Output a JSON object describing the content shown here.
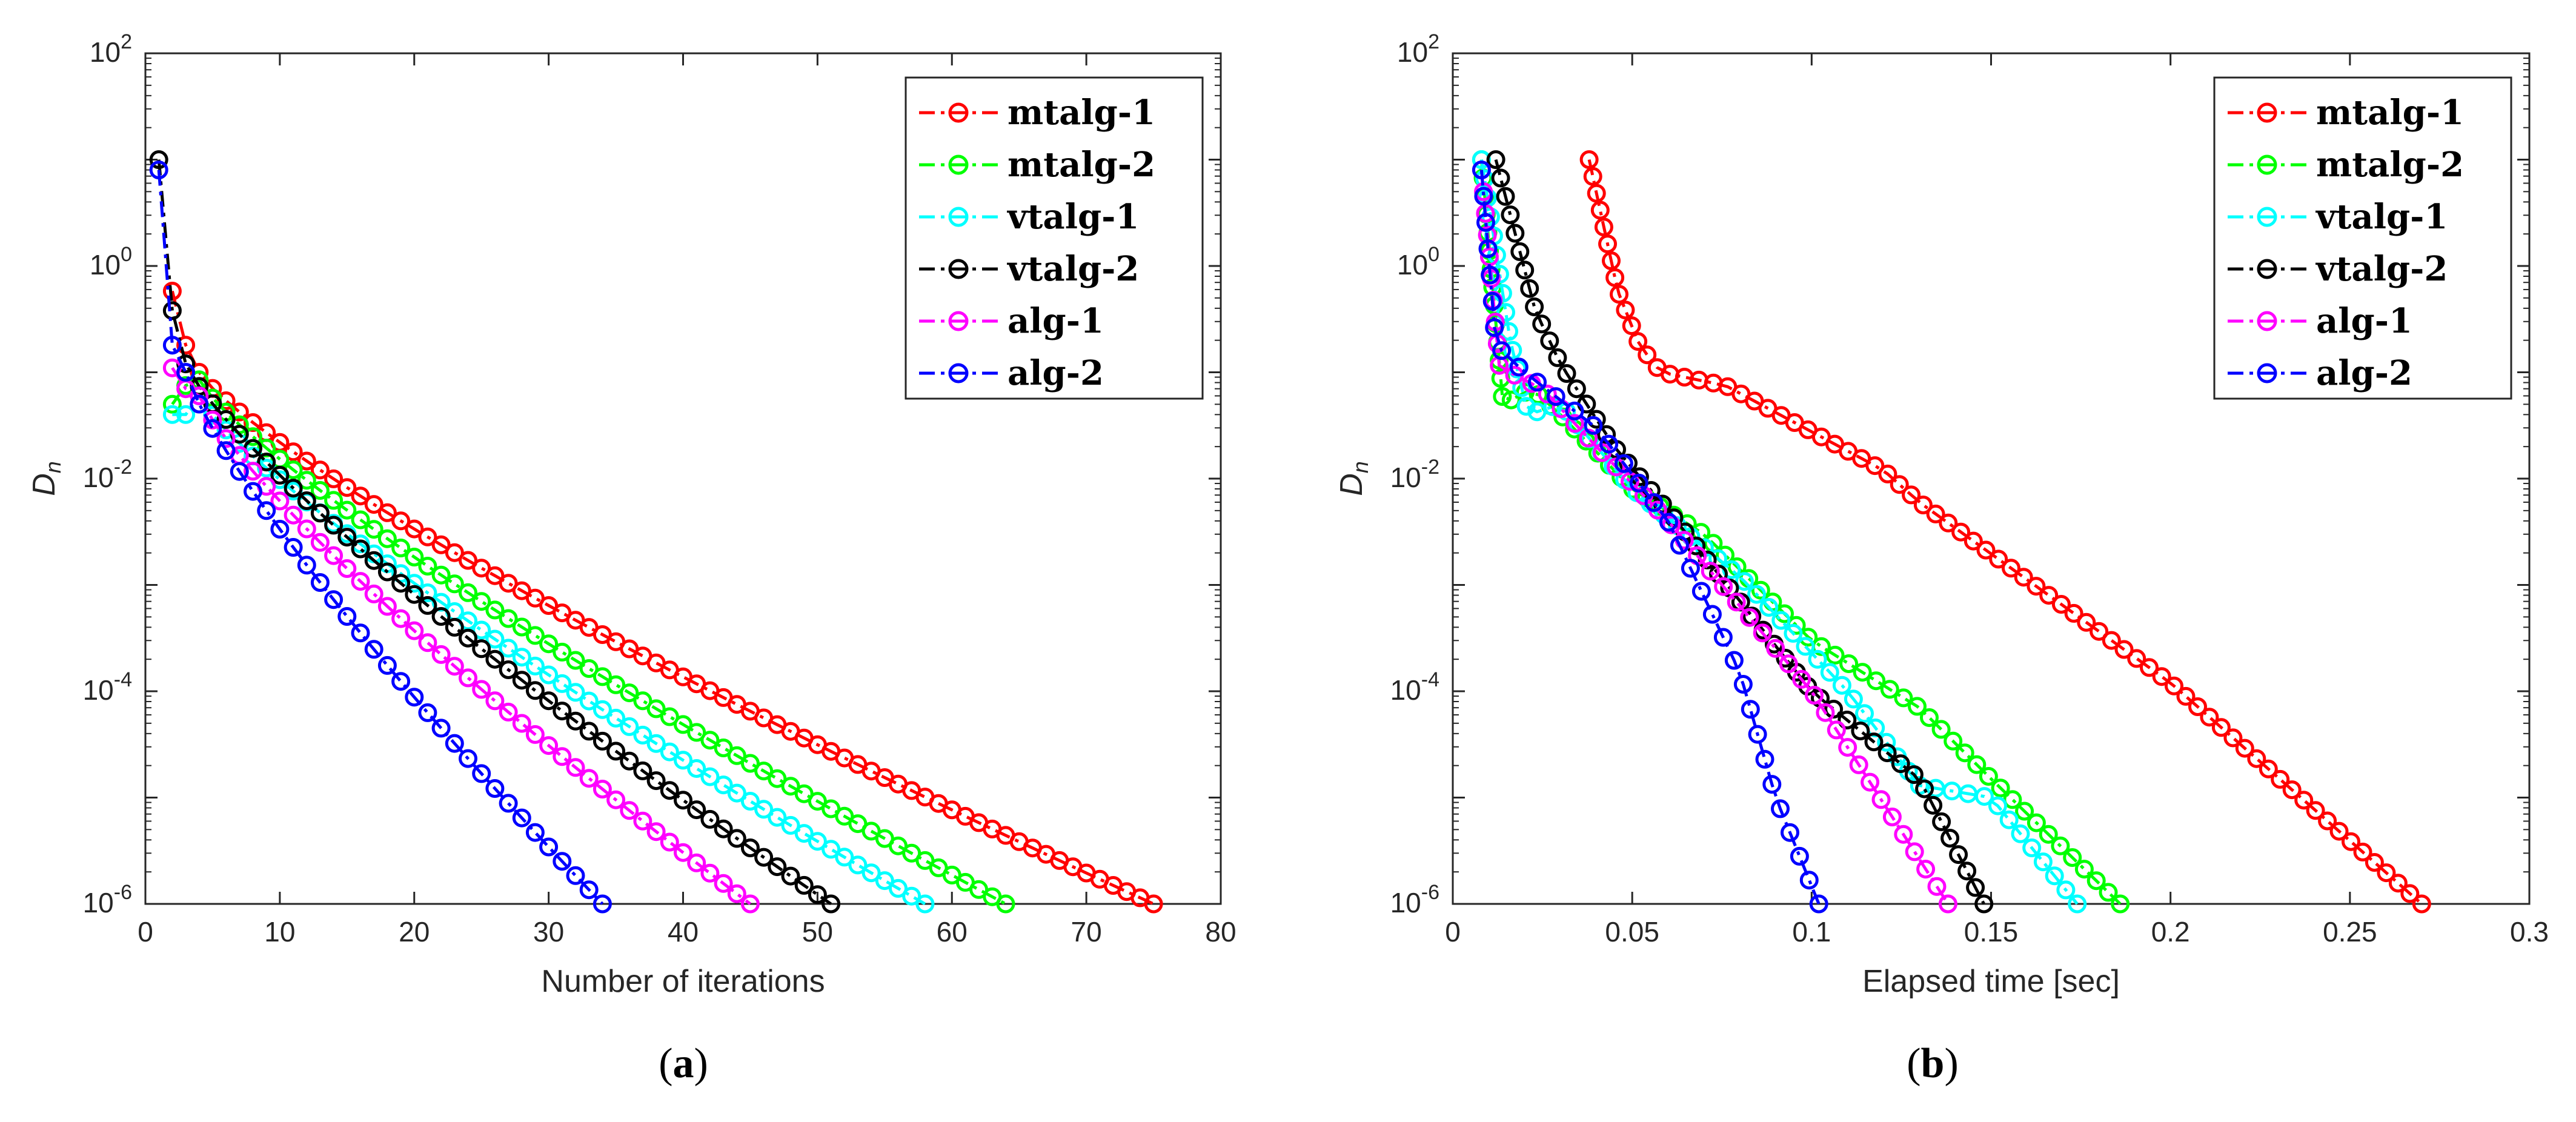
{
  "chart_data": [
    {
      "type": "line",
      "yscale": "log",
      "caption_letter": "a",
      "xlabel": "Number of iterations",
      "ylabel": "D",
      "ylabel_sub": "n",
      "xlim": [
        0,
        80
      ],
      "ylim_exp": [
        -6,
        2
      ],
      "xticks": [
        "0",
        "10",
        "20",
        "30",
        "40",
        "50",
        "60",
        "70",
        "80"
      ],
      "yticks": [
        {
          "base": "10",
          "exp": "2"
        },
        {
          "base": "10",
          "exp": "0"
        },
        {
          "base": "10",
          "exp": "-2"
        },
        {
          "base": "10",
          "exp": "-4"
        },
        {
          "base": "10",
          "exp": "-6"
        }
      ],
      "legend_position": "top-right",
      "series": [
        {
          "name": "mtalg-1",
          "color": "#ff0000",
          "start": [
            2,
            0.58
          ],
          "mid": [
            [
              3,
              0.18
            ],
            [
              4,
              0.1
            ]
          ],
          "end": [
            75,
            1e-06
          ]
        },
        {
          "name": "mtalg-2",
          "color": "#00ff00",
          "start": [
            2,
            0.05
          ],
          "mid": [
            [
              3,
              0.075
            ],
            [
              4,
              0.085
            ]
          ],
          "end": [
            64,
            1e-06
          ]
        },
        {
          "name": "vtalg-1",
          "color": "#00ffff",
          "start": [
            2,
            0.04
          ],
          "mid": [
            [
              3,
              0.04
            ],
            [
              4,
              0.06
            ]
          ],
          "end": [
            58,
            1e-06
          ]
        },
        {
          "name": "vtalg-2",
          "color": "#000000",
          "start": [
            1,
            10
          ],
          "mid": [
            [
              2,
              0.38
            ],
            [
              3,
              0.12
            ]
          ],
          "end": [
            51,
            1e-06
          ]
        },
        {
          "name": "alg-1",
          "color": "#ff00ff",
          "start": [
            2,
            0.11
          ],
          "mid": [
            [
              3,
              0.07
            ],
            [
              4,
              0.06
            ]
          ],
          "end": [
            45,
            1e-06
          ]
        },
        {
          "name": "alg-2",
          "color": "#0000ff",
          "start": [
            1,
            8
          ],
          "mid": [
            [
              2,
              0.18
            ],
            [
              3,
              0.1
            ]
          ],
          "end": [
            34,
            1e-06
          ]
        }
      ]
    },
    {
      "type": "line",
      "yscale": "log",
      "caption_letter": "b",
      "xlabel": "Elapsed time [sec]",
      "ylabel": "D",
      "ylabel_sub": "n",
      "xlim": [
        0,
        0.3
      ],
      "ylim_exp": [
        -6,
        2
      ],
      "xticks": [
        "0",
        "0.05",
        "0.1",
        "0.15",
        "0.2",
        "0.25",
        "0.3"
      ],
      "yticks": [
        {
          "base": "10",
          "exp": "2"
        },
        {
          "base": "10",
          "exp": "0"
        },
        {
          "base": "10",
          "exp": "-2"
        },
        {
          "base": "10",
          "exp": "-4"
        },
        {
          "base": "10",
          "exp": "-6"
        }
      ],
      "legend_position": "top-right",
      "series": [
        {
          "name": "mtalg-1",
          "color": "#ff0000",
          "n": 75,
          "points": [
            [
              0.038,
              10
            ],
            [
              0.046,
              0.58
            ],
            [
              0.052,
              0.18
            ],
            [
              0.058,
              0.1
            ],
            [
              0.076,
              0.075
            ],
            [
              0.12,
              0.012
            ],
            [
              0.13,
              0.006
            ],
            [
              0.2,
              0.00012
            ],
            [
              0.27,
              1e-06
            ]
          ]
        },
        {
          "name": "mtalg-2",
          "color": "#00ff00",
          "n": 64,
          "points": [
            [
              0.008,
              10
            ],
            [
              0.014,
              0.05
            ],
            [
              0.022,
              0.07
            ],
            [
              0.03,
              0.04
            ],
            [
              0.05,
              0.008
            ],
            [
              0.07,
              0.003
            ],
            [
              0.1,
              0.0003
            ],
            [
              0.13,
              7e-05
            ],
            [
              0.15,
              1.5e-05
            ],
            [
              0.186,
              1e-06
            ]
          ]
        },
        {
          "name": "vtalg-1",
          "color": "#00ffff",
          "n": 58,
          "points": [
            [
              0.008,
              10
            ],
            [
              0.016,
              0.2
            ],
            [
              0.021,
              0.04
            ],
            [
              0.03,
              0.05
            ],
            [
              0.05,
              0.008
            ],
            [
              0.08,
              0.0012
            ],
            [
              0.11,
              0.0001
            ],
            [
              0.13,
              1.3e-05
            ],
            [
              0.15,
              1e-05
            ],
            [
              0.174,
              1e-06
            ]
          ]
        },
        {
          "name": "vtalg-2",
          "color": "#000000",
          "n": 51,
          "points": [
            [
              0.012,
              10
            ],
            [
              0.023,
              0.38
            ],
            [
              0.03,
              0.12
            ],
            [
              0.045,
              0.02
            ],
            [
              0.06,
              0.005
            ],
            [
              0.1,
              0.0001
            ],
            [
              0.13,
              1.5e-05
            ],
            [
              0.148,
              1e-06
            ]
          ]
        },
        {
          "name": "alg-1",
          "color": "#ff00ff",
          "n": 45,
          "points": [
            [
              0.008,
              8
            ],
            [
              0.013,
              0.11
            ],
            [
              0.025,
              0.07
            ],
            [
              0.04,
              0.02
            ],
            [
              0.06,
              0.004
            ],
            [
              0.1,
              0.0001
            ],
            [
              0.138,
              1e-06
            ]
          ]
        },
        {
          "name": "alg-2",
          "color": "#0000ff",
          "n": 34,
          "points": [
            [
              0.008,
              8
            ],
            [
              0.012,
              0.18
            ],
            [
              0.02,
              0.1
            ],
            [
              0.04,
              0.03
            ],
            [
              0.06,
              0.004
            ],
            [
              0.08,
              0.00015
            ],
            [
              0.09,
              1e-05
            ],
            [
              0.102,
              1e-06
            ]
          ]
        }
      ]
    }
  ]
}
